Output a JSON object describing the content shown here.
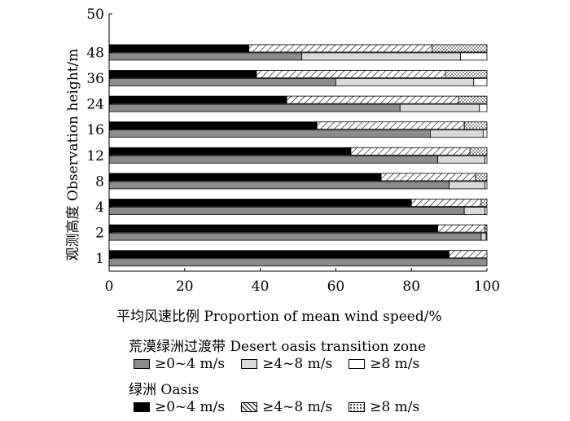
{
  "chart_data": {
    "type": "bar",
    "orientation": "horizontal",
    "stacked": true,
    "xlabel": "平均风速比例 Proportion of mean wind speed/%",
    "ylabel": "观测高度 Observation height/m",
    "xlim": [
      0,
      100
    ],
    "x_ticks": [
      "0",
      "20",
      "40",
      "60",
      "80",
      "100"
    ],
    "y_ticks": [
      "1",
      "2",
      "4",
      "8",
      "12",
      "16",
      "24",
      "36",
      "48",
      "50"
    ],
    "categories": [
      "1",
      "2",
      "4",
      "8",
      "12",
      "16",
      "24",
      "36",
      "48"
    ],
    "groups": [
      {
        "name": "荒漠绿洲过渡带 Desert oasis transition zone",
        "series": [
          {
            "name": "≥0~4 m/s",
            "color": "#8c8c8c",
            "pattern": "solid",
            "values": [
              100,
              98.5,
              94,
              90,
              87,
              85,
              77,
              60,
              51
            ]
          },
          {
            "name": "≥4~8 m/s",
            "color": "#d9d9d9",
            "pattern": "solid",
            "values": [
              0,
              1.3,
              5.5,
              9.5,
              12.5,
              14,
              21,
              36.5,
              42
            ]
          },
          {
            "name": "≥8 m/s",
            "color": "#ffffff",
            "pattern": "solid",
            "values": [
              0,
              0.2,
              0.5,
              0.5,
              0.5,
              1,
              2,
              3.5,
              7
            ]
          }
        ]
      },
      {
        "name": "绿洲 Oasis",
        "series": [
          {
            "name": "≥0~4 m/s",
            "color": "#000000",
            "pattern": "solid",
            "values": [
              90,
              87,
              80,
              72,
              64,
              55,
              47,
              39,
              37
            ]
          },
          {
            "name": "≥4~8 m/s",
            "color": "#ffffff",
            "pattern": "hatch",
            "values": [
              10,
              12.5,
              18.5,
              25,
              31.5,
              39,
              45.5,
              50,
              48.5
            ]
          },
          {
            "name": "≥8 m/s",
            "color": "#ffffff",
            "pattern": "dots",
            "values": [
              0,
              0.5,
              1.5,
              3,
              4.5,
              6,
              7.5,
              11,
              14.5
            ]
          }
        ]
      }
    ],
    "legend_position": "bottom",
    "grid": false
  }
}
